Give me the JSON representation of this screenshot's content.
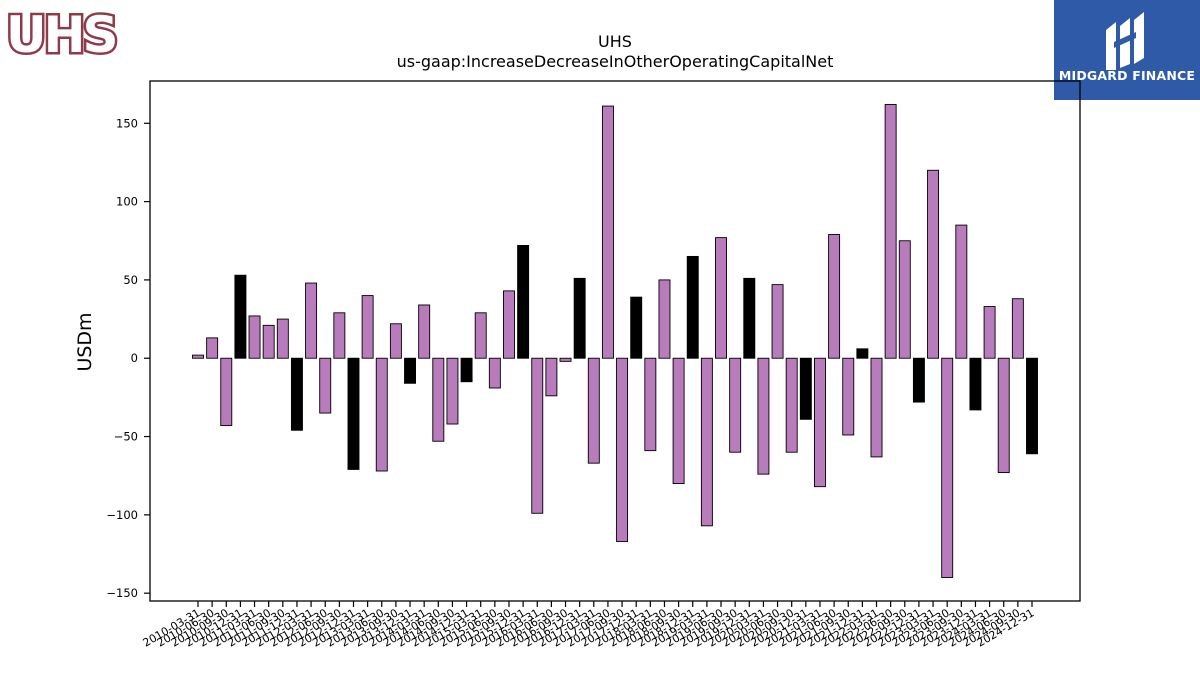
{
  "header": {
    "left_logo": {
      "text": "UHS",
      "icon": "uhs-logo",
      "color": "#8f3a4a"
    },
    "right_logo": {
      "text": "MIDGARD FINANCE",
      "icon": "midgard-finance-logo",
      "color": "#2f5aa8"
    }
  },
  "chart_data": {
    "type": "bar",
    "title": "UHS",
    "subtitle": "us-gaap:IncreaseDecreaseInOtherOperatingCapitalNet",
    "ylabel": "USDm",
    "xlabel": "",
    "ylim": [
      -155,
      177
    ],
    "yticks": [
      -150,
      -100,
      -50,
      0,
      50,
      100,
      150
    ],
    "grid": false,
    "legend": "none",
    "colors": {
      "quarter": "#b87bbb",
      "year_end": "#000000"
    },
    "categories": [
      "2010-03-31",
      "2010-06-30",
      "2010-09-30",
      "2010-12-31",
      "2011-03-31",
      "2011-06-30",
      "2011-09-30",
      "2011-12-31",
      "2012-03-31",
      "2012-06-30",
      "2012-09-30",
      "2012-12-31",
      "2013-03-31",
      "2013-06-30",
      "2013-09-30",
      "2013-12-31",
      "2014-03-31",
      "2014-06-30",
      "2014-09-30",
      "2014-12-31",
      "2015-03-31",
      "2015-06-30",
      "2015-09-30",
      "2015-12-31",
      "2016-03-31",
      "2016-06-30",
      "2016-09-30",
      "2016-12-31",
      "2017-03-31",
      "2017-06-30",
      "2017-09-30",
      "2017-12-31",
      "2018-03-31",
      "2018-06-30",
      "2018-09-30",
      "2018-12-31",
      "2019-03-31",
      "2019-06-30",
      "2019-09-30",
      "2019-12-31",
      "2020-03-31",
      "2020-06-30",
      "2020-09-30",
      "2020-12-31",
      "2021-03-31",
      "2021-06-30",
      "2021-09-30",
      "2021-12-31",
      "2022-03-31",
      "2022-06-30",
      "2022-09-30",
      "2022-12-31",
      "2023-03-31",
      "2023-06-30",
      "2023-09-30",
      "2023-12-31",
      "2024-03-31",
      "2024-06-30",
      "2024-09-30",
      "2024-12-31"
    ],
    "values": [
      2,
      13,
      -43,
      53,
      27,
      21,
      25,
      -46,
      48,
      -35,
      29,
      -71,
      40,
      -72,
      22,
      -16,
      34,
      -53,
      -42,
      -15,
      29,
      -19,
      43,
      72,
      -99,
      -24,
      -2,
      51,
      -67,
      161,
      -117,
      39,
      -59,
      50,
      -80,
      65,
      -107,
      77,
      -60,
      51,
      -74,
      47,
      -60,
      -39,
      -82,
      79,
      -49,
      6,
      -63,
      162,
      75,
      -28,
      120,
      -140,
      85,
      -33,
      33,
      -73,
      38,
      -61
    ]
  }
}
